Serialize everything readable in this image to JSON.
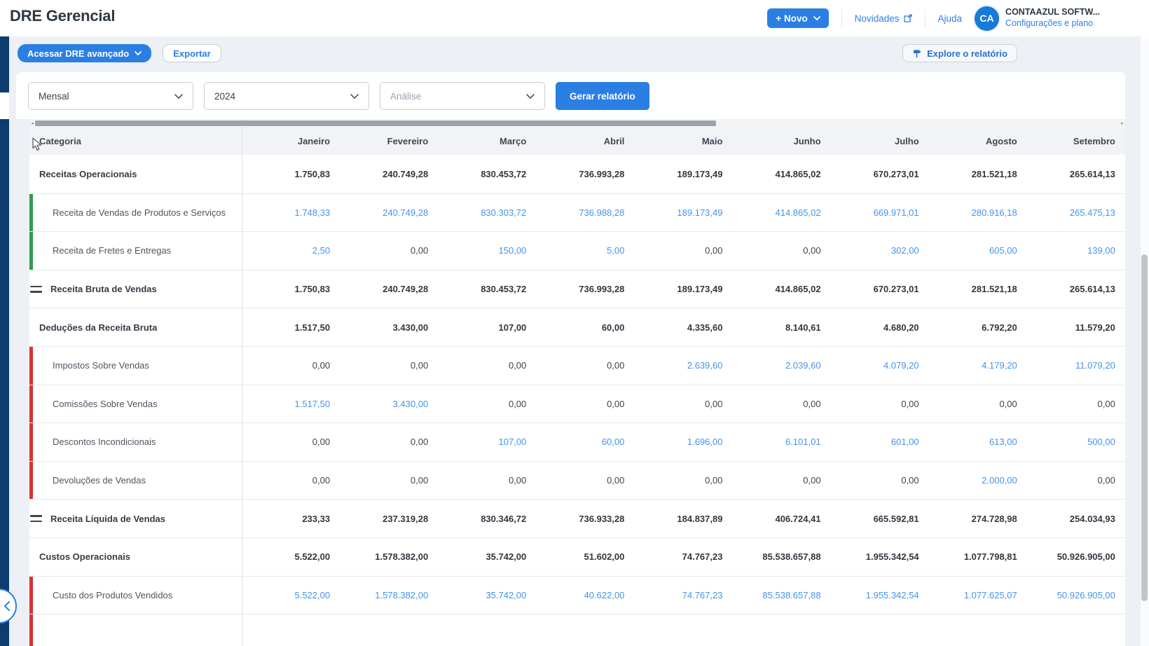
{
  "header": {
    "title": "DRE Gerencial",
    "novo_label": "+ Novo",
    "novidades_label": "Novidades",
    "ajuda_label": "Ajuda",
    "avatar_initials": "CA",
    "account_name": "CONTAAZUL SOFTW...",
    "account_link": "Configurações e plano"
  },
  "toolbar": {
    "advanced_button": "Acessar DRE avançado",
    "export_button": "Exportar",
    "explore_button": "Explore o relatório"
  },
  "filters": {
    "period_value": "Mensal",
    "year_value": "2024",
    "analysis_placeholder": "Análise",
    "generate_button": "Gerar relatório"
  },
  "colors": {
    "brand_blue": "#2b7fe3",
    "link_blue": "#4493ea",
    "navy_sidebar": "#0d3c6e",
    "green_accent": "#2f9e52",
    "red_accent": "#d93333",
    "table_header_bg": "#f1f3f6",
    "page_bg": "#edf0f4"
  },
  "table": {
    "category_header": "Categoria",
    "months": [
      "Janeiro",
      "Fevereiro",
      "Março",
      "Abril",
      "Maio",
      "Junho",
      "Julho",
      "Agosto",
      "Setembro"
    ],
    "rows": [
      {
        "label": "Receitas Operacionais",
        "style": "parent",
        "accent": null,
        "icon": null,
        "cells": [
          {
            "v": "1.750,83",
            "link": false
          },
          {
            "v": "240.749,28",
            "link": false
          },
          {
            "v": "830.453,72",
            "link": false
          },
          {
            "v": "736.993,28",
            "link": false
          },
          {
            "v": "189.173,49",
            "link": false
          },
          {
            "v": "414.865,02",
            "link": false
          },
          {
            "v": "670.273,01",
            "link": false
          },
          {
            "v": "281.521,18",
            "link": false
          },
          {
            "v": "265.614,13",
            "link": false
          }
        ]
      },
      {
        "label": "Receita de Vendas de Produtos e Serviços",
        "style": "child",
        "accent": "green",
        "icon": null,
        "cells": [
          {
            "v": "1.748,33",
            "link": true
          },
          {
            "v": "240.749,28",
            "link": true
          },
          {
            "v": "830.303,72",
            "link": true
          },
          {
            "v": "736.988,28",
            "link": true
          },
          {
            "v": "189.173,49",
            "link": true
          },
          {
            "v": "414.865,02",
            "link": true
          },
          {
            "v": "669.971,01",
            "link": true
          },
          {
            "v": "280.916,18",
            "link": true
          },
          {
            "v": "265.475,13",
            "link": true
          }
        ]
      },
      {
        "label": "Receita de Fretes e Entregas",
        "style": "child",
        "accent": "green",
        "icon": null,
        "cells": [
          {
            "v": "2,50",
            "link": true
          },
          {
            "v": "0,00",
            "link": false
          },
          {
            "v": "150,00",
            "link": true
          },
          {
            "v": "5,00",
            "link": true
          },
          {
            "v": "0,00",
            "link": false
          },
          {
            "v": "0,00",
            "link": false
          },
          {
            "v": "302,00",
            "link": true
          },
          {
            "v": "605,00",
            "link": true
          },
          {
            "v": "139,00",
            "link": true
          }
        ]
      },
      {
        "label": "Receita Bruta de Vendas",
        "style": "parent",
        "accent": null,
        "icon": "equals",
        "cells": [
          {
            "v": "1.750,83",
            "link": false
          },
          {
            "v": "240.749,28",
            "link": false
          },
          {
            "v": "830.453,72",
            "link": false
          },
          {
            "v": "736.993,28",
            "link": false
          },
          {
            "v": "189.173,49",
            "link": false
          },
          {
            "v": "414.865,02",
            "link": false
          },
          {
            "v": "670.273,01",
            "link": false
          },
          {
            "v": "281.521,18",
            "link": false
          },
          {
            "v": "265.614,13",
            "link": false
          }
        ]
      },
      {
        "label": "Deduções da Receita Bruta",
        "style": "parent",
        "accent": null,
        "icon": null,
        "cells": [
          {
            "v": "1.517,50",
            "link": false
          },
          {
            "v": "3.430,00",
            "link": false
          },
          {
            "v": "107,00",
            "link": false
          },
          {
            "v": "60,00",
            "link": false
          },
          {
            "v": "4.335,60",
            "link": false
          },
          {
            "v": "8.140,61",
            "link": false
          },
          {
            "v": "4.680,20",
            "link": false
          },
          {
            "v": "6.792,20",
            "link": false
          },
          {
            "v": "11.579,20",
            "link": false
          }
        ]
      },
      {
        "label": "Impostos Sobre Vendas",
        "style": "child",
        "accent": "red",
        "icon": null,
        "cells": [
          {
            "v": "0,00",
            "link": false
          },
          {
            "v": "0,00",
            "link": false
          },
          {
            "v": "0,00",
            "link": false
          },
          {
            "v": "0,00",
            "link": false
          },
          {
            "v": "2.639,60",
            "link": true
          },
          {
            "v": "2.039,60",
            "link": true
          },
          {
            "v": "4.079,20",
            "link": true
          },
          {
            "v": "4.179,20",
            "link": true
          },
          {
            "v": "11.079,20",
            "link": true
          }
        ]
      },
      {
        "label": "Comissões Sobre Vendas",
        "style": "child",
        "accent": "red",
        "icon": null,
        "cells": [
          {
            "v": "1.517,50",
            "link": true
          },
          {
            "v": "3.430,00",
            "link": true
          },
          {
            "v": "0,00",
            "link": false
          },
          {
            "v": "0,00",
            "link": false
          },
          {
            "v": "0,00",
            "link": false
          },
          {
            "v": "0,00",
            "link": false
          },
          {
            "v": "0,00",
            "link": false
          },
          {
            "v": "0,00",
            "link": false
          },
          {
            "v": "0,00",
            "link": false
          }
        ]
      },
      {
        "label": "Descontos Incondicionais",
        "style": "child",
        "accent": "red",
        "icon": null,
        "cells": [
          {
            "v": "0,00",
            "link": false
          },
          {
            "v": "0,00",
            "link": false
          },
          {
            "v": "107,00",
            "link": true
          },
          {
            "v": "60,00",
            "link": true
          },
          {
            "v": "1.696,00",
            "link": true
          },
          {
            "v": "6.101,01",
            "link": true
          },
          {
            "v": "601,00",
            "link": true
          },
          {
            "v": "613,00",
            "link": true
          },
          {
            "v": "500,00",
            "link": true
          }
        ]
      },
      {
        "label": "Devoluções de Vendas",
        "style": "child",
        "accent": "red",
        "icon": null,
        "cells": [
          {
            "v": "0,00",
            "link": false
          },
          {
            "v": "0,00",
            "link": false
          },
          {
            "v": "0,00",
            "link": false
          },
          {
            "v": "0,00",
            "link": false
          },
          {
            "v": "0,00",
            "link": false
          },
          {
            "v": "0,00",
            "link": false
          },
          {
            "v": "0,00",
            "link": false
          },
          {
            "v": "2.000,00",
            "link": true
          },
          {
            "v": "0,00",
            "link": false
          }
        ]
      },
      {
        "label": "Receita Líquida de Vendas",
        "style": "parent",
        "accent": null,
        "icon": "equals",
        "cells": [
          {
            "v": "233,33",
            "link": false
          },
          {
            "v": "237.319,28",
            "link": false
          },
          {
            "v": "830.346,72",
            "link": false
          },
          {
            "v": "736.933,28",
            "link": false
          },
          {
            "v": "184.837,89",
            "link": false
          },
          {
            "v": "406.724,41",
            "link": false
          },
          {
            "v": "665.592,81",
            "link": false
          },
          {
            "v": "274.728,98",
            "link": false
          },
          {
            "v": "254.034,93",
            "link": false
          }
        ]
      },
      {
        "label": "Custos Operacionais",
        "style": "parent",
        "accent": null,
        "icon": null,
        "cells": [
          {
            "v": "5.522,00",
            "link": false
          },
          {
            "v": "1.578.382,00",
            "link": false
          },
          {
            "v": "35.742,00",
            "link": false
          },
          {
            "v": "51.602,00",
            "link": false
          },
          {
            "v": "74.767,23",
            "link": false
          },
          {
            "v": "85.538.657,88",
            "link": false
          },
          {
            "v": "1.955.342,54",
            "link": false
          },
          {
            "v": "1.077.798,81",
            "link": false
          },
          {
            "v": "50.926.905,00",
            "link": false
          }
        ]
      },
      {
        "label": "Custo dos Produtos Vendidos",
        "style": "child",
        "accent": "red",
        "icon": null,
        "cells": [
          {
            "v": "5.522,00",
            "link": true
          },
          {
            "v": "1.578.382,00",
            "link": true
          },
          {
            "v": "35.742,00",
            "link": true
          },
          {
            "v": "40.622,00",
            "link": true
          },
          {
            "v": "74.767,23",
            "link": true
          },
          {
            "v": "85.538.657,88",
            "link": true
          },
          {
            "v": "1.955.342,54",
            "link": true
          },
          {
            "v": "1.077.625,07",
            "link": true
          },
          {
            "v": "50.926.905,00",
            "link": true
          }
        ]
      },
      {
        "label": "",
        "style": "child",
        "accent": "red",
        "icon": null,
        "cells": []
      }
    ]
  }
}
